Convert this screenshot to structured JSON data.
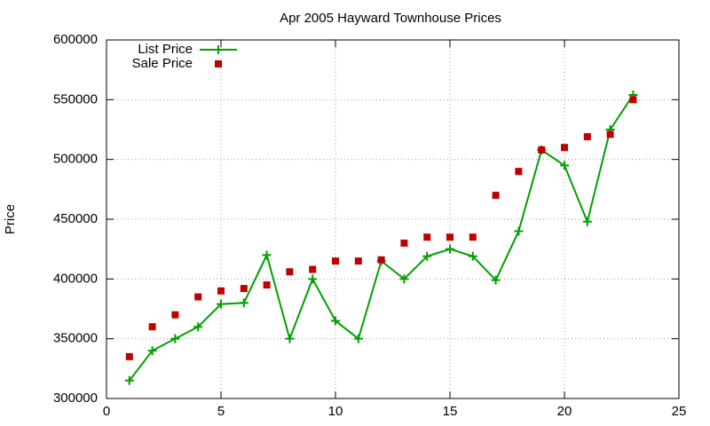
{
  "chart_data": {
    "type": "scatter",
    "title": "Apr 2005 Hayward Townhouse Prices",
    "y_label": "Price",
    "x": [
      1,
      2,
      3,
      4,
      5,
      6,
      7,
      8,
      9,
      10,
      11,
      12,
      13,
      14,
      15,
      16,
      17,
      18,
      19,
      20,
      21,
      22,
      23
    ],
    "series": [
      {
        "name": "List Price",
        "color": "#00a000",
        "mode": "lines+markers",
        "marker": "plus",
        "values": [
          315000,
          340000,
          350000,
          360000,
          379000,
          380000,
          420000,
          350000,
          400000,
          365000,
          350000,
          415000,
          400000,
          419000,
          425000,
          419000,
          399000,
          440000,
          508000,
          495000,
          448000,
          525000,
          554000
        ]
      },
      {
        "name": "Sale Price",
        "color": "#c00000",
        "mode": "markers",
        "marker": "square",
        "values": [
          335000,
          360000,
          370000,
          385000,
          390000,
          392000,
          395000,
          406000,
          408000,
          415000,
          415000,
          416000,
          430000,
          435000,
          435000,
          435000,
          470000,
          490000,
          508000,
          510000,
          519000,
          521000,
          550000
        ]
      }
    ],
    "xlim": [
      0,
      25
    ],
    "xticks": [
      0,
      5,
      10,
      15,
      20,
      25
    ],
    "ylim": [
      300000,
      600000
    ],
    "yticks": [
      300000,
      350000,
      400000,
      450000,
      500000,
      550000,
      600000
    ],
    "grid": true,
    "legend": "top-left"
  }
}
